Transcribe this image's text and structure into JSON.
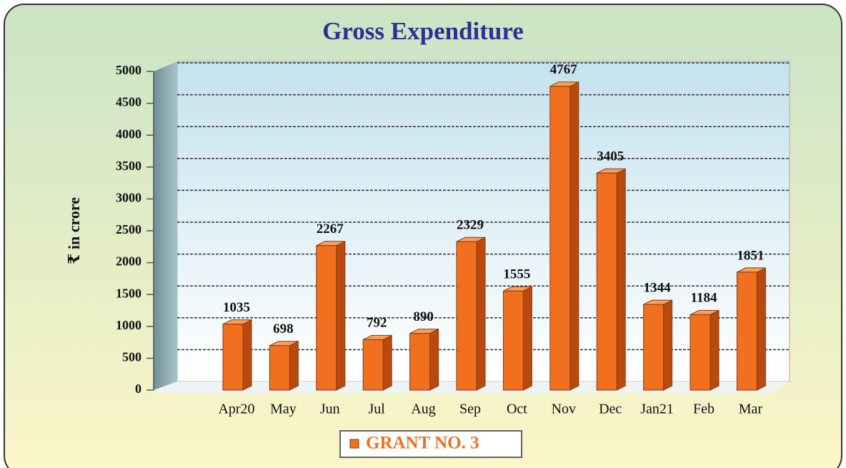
{
  "chart_data": {
    "type": "bar",
    "title": "Gross Expenditure",
    "ylabel": "₹ in crore",
    "categories": [
      "Apr20",
      "May",
      "Jun",
      "Jul",
      "Aug",
      "Sep",
      "Oct",
      "Nov",
      "Dec",
      "Jan21",
      "Feb",
      "Mar"
    ],
    "series": [
      {
        "name": "GRANT NO. 3",
        "color": "#f07020",
        "values": [
          1035,
          698,
          2267,
          792,
          890,
          2329,
          1555,
          4767,
          3405,
          1344,
          1184,
          1851
        ]
      }
    ],
    "ylim": [
      0,
      5000
    ],
    "yticks": [
      0,
      500,
      1000,
      1500,
      2000,
      2500,
      3000,
      3500,
      4000,
      4500,
      5000
    ],
    "grid": true,
    "legend": "bottom"
  }
}
